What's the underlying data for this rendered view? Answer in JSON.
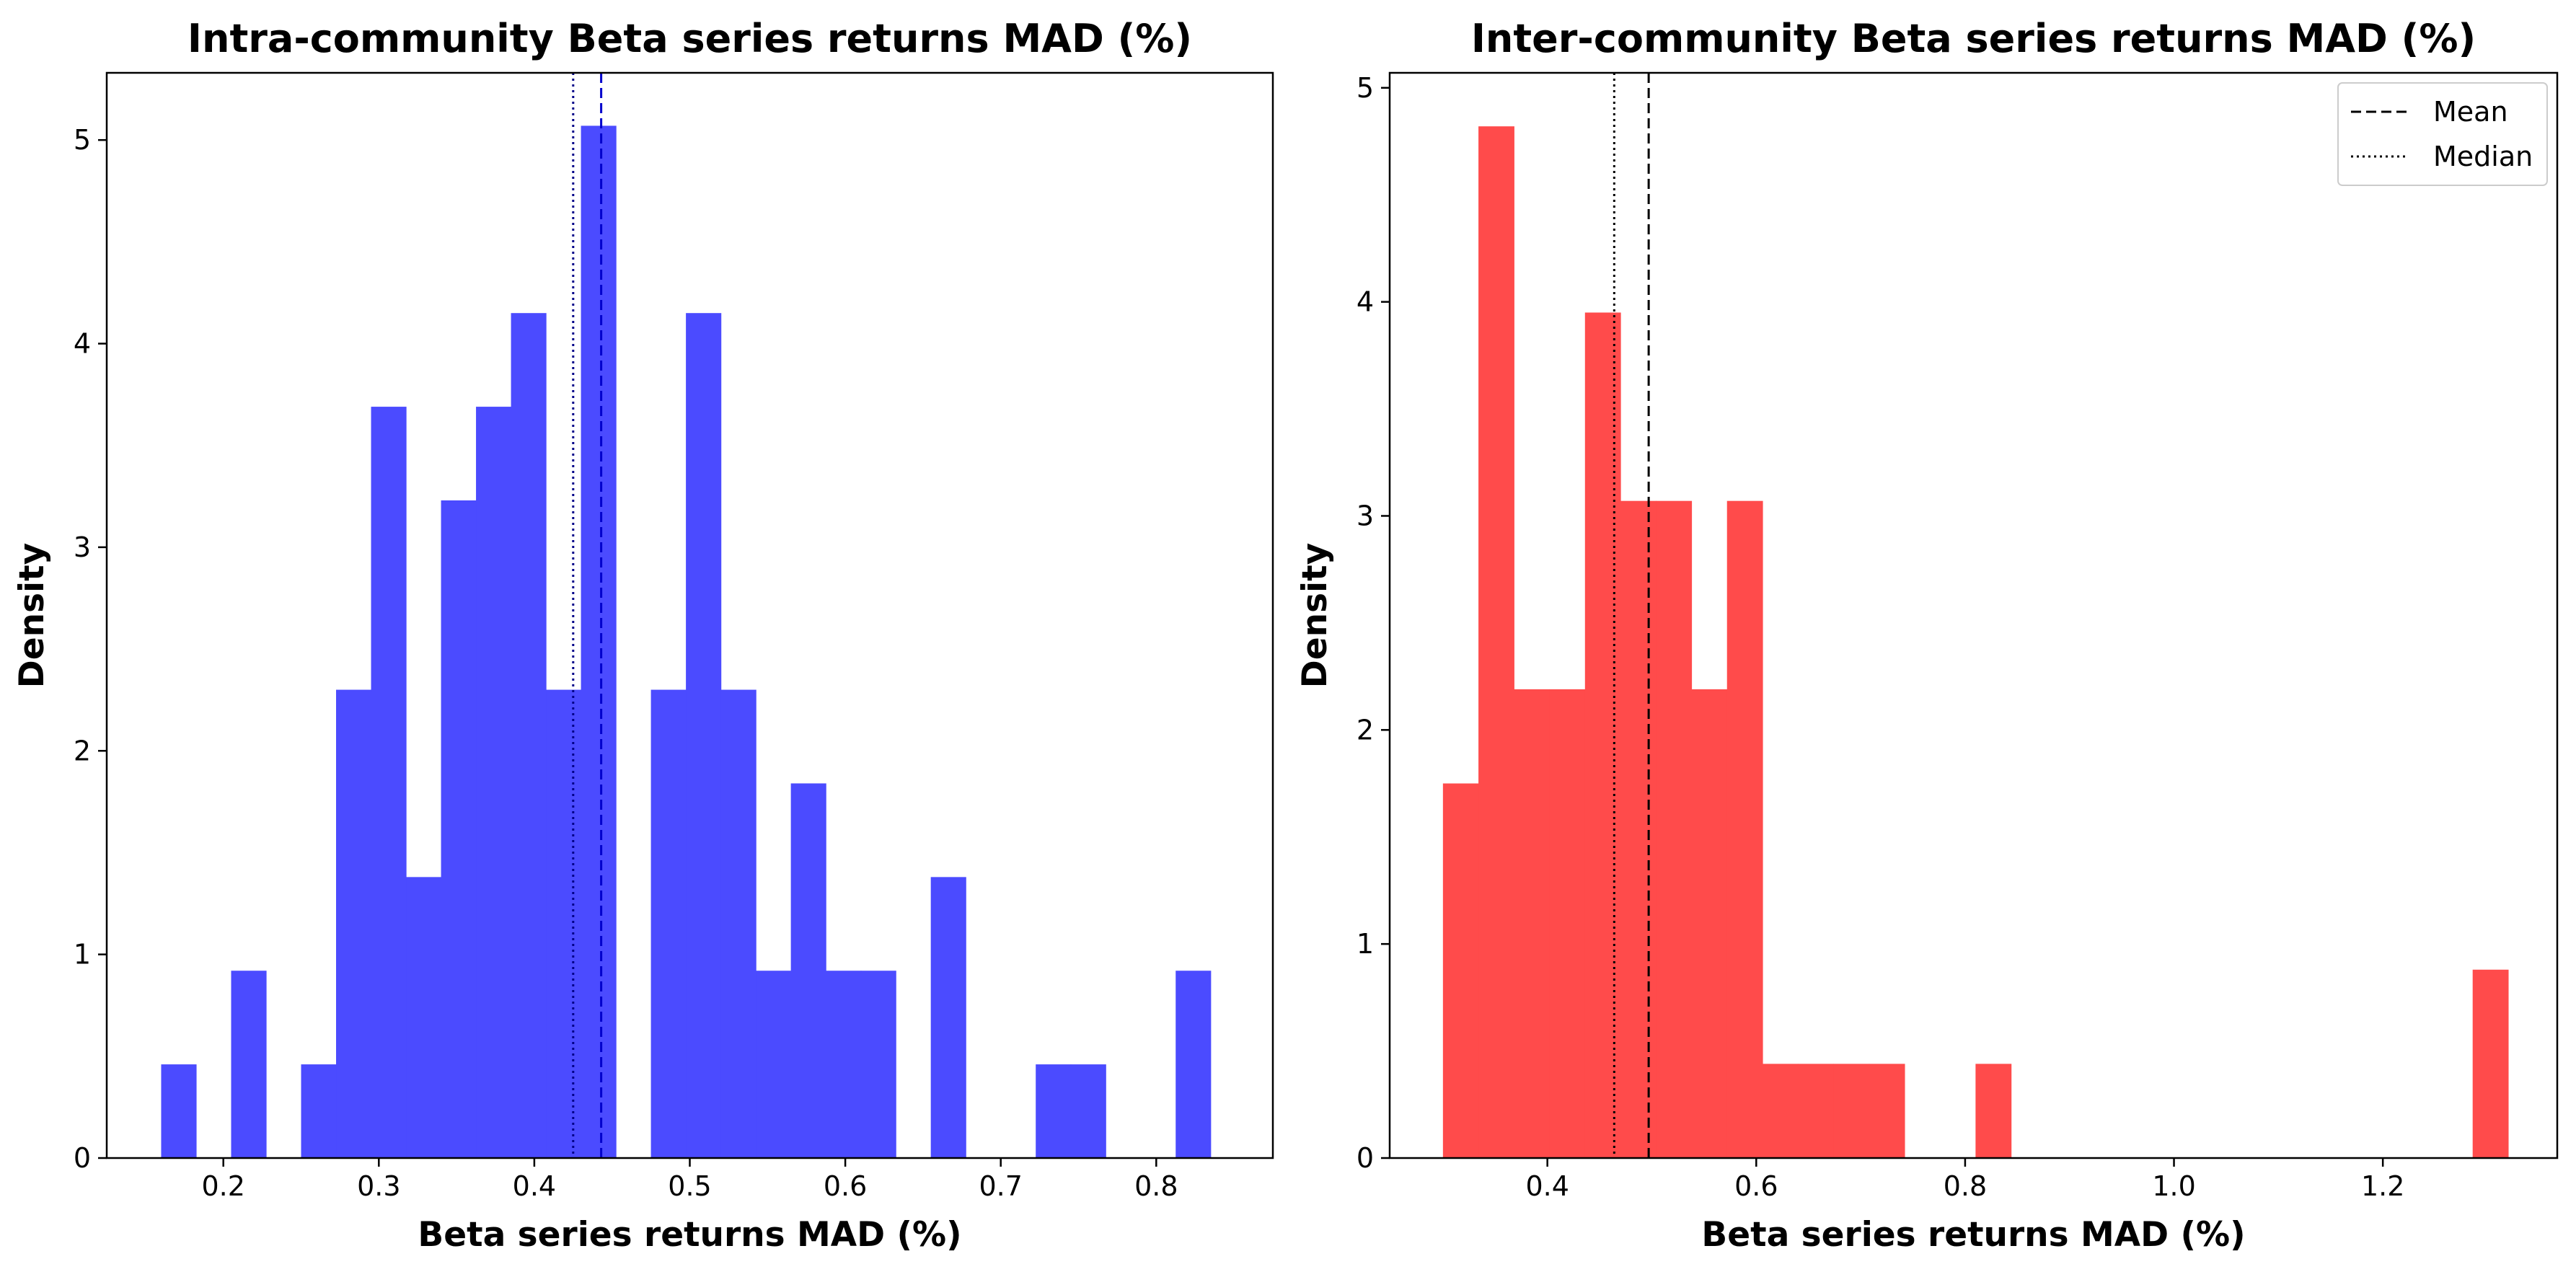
{
  "chart_data": [
    {
      "type": "histogram",
      "title": "Intra-community Beta series returns MAD (%)",
      "xlabel": "Beta series returns MAD (%)",
      "ylabel": "Density",
      "color": "#4b4bff",
      "xlim": [
        0.125,
        0.875
      ],
      "ylim": [
        0,
        5.33
      ],
      "xticks": [
        0.2,
        0.3,
        0.4,
        0.5,
        0.6,
        0.7,
        0.8
      ],
      "xtick_labels": [
        "0.2",
        "0.3",
        "0.4",
        "0.5",
        "0.6",
        "0.7",
        "0.8"
      ],
      "yticks": [
        0,
        1,
        2,
        3,
        4,
        5
      ],
      "ytick_labels": [
        "0",
        "1",
        "2",
        "3",
        "4",
        "5"
      ],
      "bin_edges": [
        0.16,
        0.1825,
        0.205,
        0.2275,
        0.25,
        0.2725,
        0.295,
        0.3175,
        0.34,
        0.3625,
        0.385,
        0.4075,
        0.43,
        0.4525,
        0.475,
        0.4975,
        0.52,
        0.5425,
        0.565,
        0.5875,
        0.61,
        0.6325,
        0.655,
        0.6775,
        0.7,
        0.7225,
        0.745,
        0.7675,
        0.79,
        0.8125,
        0.835
      ],
      "densities": [
        0.46,
        0,
        0.92,
        0,
        0.46,
        2.3,
        3.69,
        1.38,
        3.23,
        3.69,
        4.15,
        2.3,
        5.07,
        0,
        2.3,
        4.15,
        2.3,
        0.92,
        1.84,
        0.92,
        0.92,
        0,
        1.38,
        0,
        0,
        0.46,
        0.46,
        0,
        0,
        0.92
      ],
      "mean_line": {
        "x": 0.443,
        "color": "#0000cc",
        "style": "dashed"
      },
      "median_line": {
        "x": 0.425,
        "color": "#000088",
        "style": "dotted"
      },
      "legend": null
    },
    {
      "type": "histogram",
      "title": "Inter-community Beta series returns MAD (%)",
      "xlabel": "Beta series returns MAD (%)",
      "ylabel": "Density",
      "color": "#ff4b4b",
      "xlim": [
        0.249,
        1.367
      ],
      "ylim": [
        0,
        5.07
      ],
      "xticks": [
        0.4,
        0.6,
        0.8,
        1.0,
        1.2
      ],
      "xtick_labels": [
        "0.4",
        "0.6",
        "0.8",
        "1.0",
        "1.2"
      ],
      "yticks": [
        0,
        1,
        2,
        3,
        4,
        5
      ],
      "ytick_labels": [
        "0",
        "1",
        "2",
        "3",
        "4",
        "5"
      ],
      "bin_edges": [
        0.3,
        0.334,
        0.368,
        0.402,
        0.436,
        0.47,
        0.504,
        0.538,
        0.572,
        0.606,
        0.64,
        0.674,
        0.708,
        0.742,
        0.776,
        0.81,
        0.844,
        0.878,
        0.912,
        0.946,
        0.98,
        1.014,
        1.048,
        1.082,
        1.116,
        1.15,
        1.184,
        1.218,
        1.252,
        1.286,
        1.32
      ],
      "densities": [
        1.75,
        4.82,
        2.19,
        2.19,
        3.95,
        3.07,
        3.07,
        2.19,
        3.07,
        0.44,
        0.44,
        0.44,
        0.44,
        0,
        0,
        0.44,
        0,
        0,
        0,
        0,
        0,
        0,
        0,
        0,
        0,
        0,
        0,
        0,
        0,
        0.88
      ],
      "mean_line": {
        "x": 0.497,
        "color": "#000000",
        "style": "dashed"
      },
      "median_line": {
        "x": 0.464,
        "color": "#000000",
        "style": "dotted"
      },
      "legend": {
        "position": "top-right",
        "entries": [
          {
            "label": "Mean",
            "style": "dashed"
          },
          {
            "label": "Median",
            "style": "dotted"
          }
        ]
      }
    }
  ]
}
